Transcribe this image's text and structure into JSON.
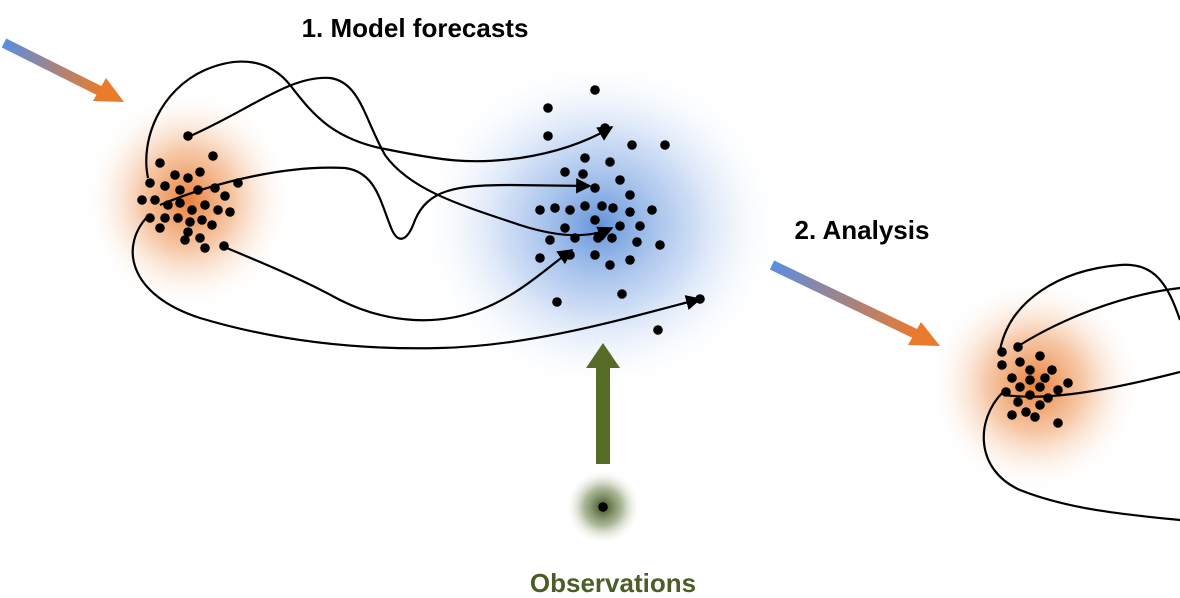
{
  "labels": {
    "model_forecasts": "1. Model forecasts",
    "analysis": "2. Analysis",
    "observations": "Observations"
  },
  "colors": {
    "prior_cloud": "#e8772e",
    "forecast_cloud": "#5b8fd8",
    "observation": "#4a5e28",
    "observation_arrow": "#566b26",
    "arrow_gradient_start": "#5a8ee0",
    "arrow_gradient_end": "#ea7a2c",
    "ink": "#000000"
  }
}
